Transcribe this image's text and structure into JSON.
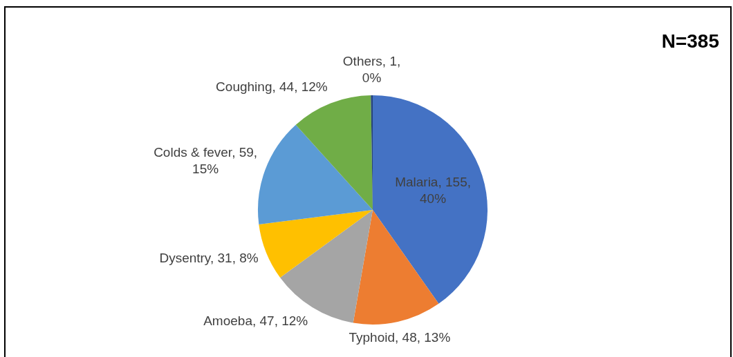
{
  "chart_data": {
    "type": "pie",
    "categories": [
      "Malaria",
      "Typhoid",
      "Amoeba",
      "Dysentry",
      "Colds & fever",
      "Coughing",
      "Others"
    ],
    "values": [
      155,
      48,
      47,
      31,
      59,
      44,
      1
    ],
    "colors": [
      "#4472c4",
      "#ed7d31",
      "#a5a5a5",
      "#ffc000",
      "#5b9bd5",
      "#70ad47",
      "#264478"
    ],
    "value_labels": [
      "155, 40%",
      "48, 13%",
      "47, 12%",
      "31, 8%",
      "59, 15%",
      "44, 12%",
      "1, 0%"
    ],
    "annotations": [
      "N=385"
    ]
  }
}
